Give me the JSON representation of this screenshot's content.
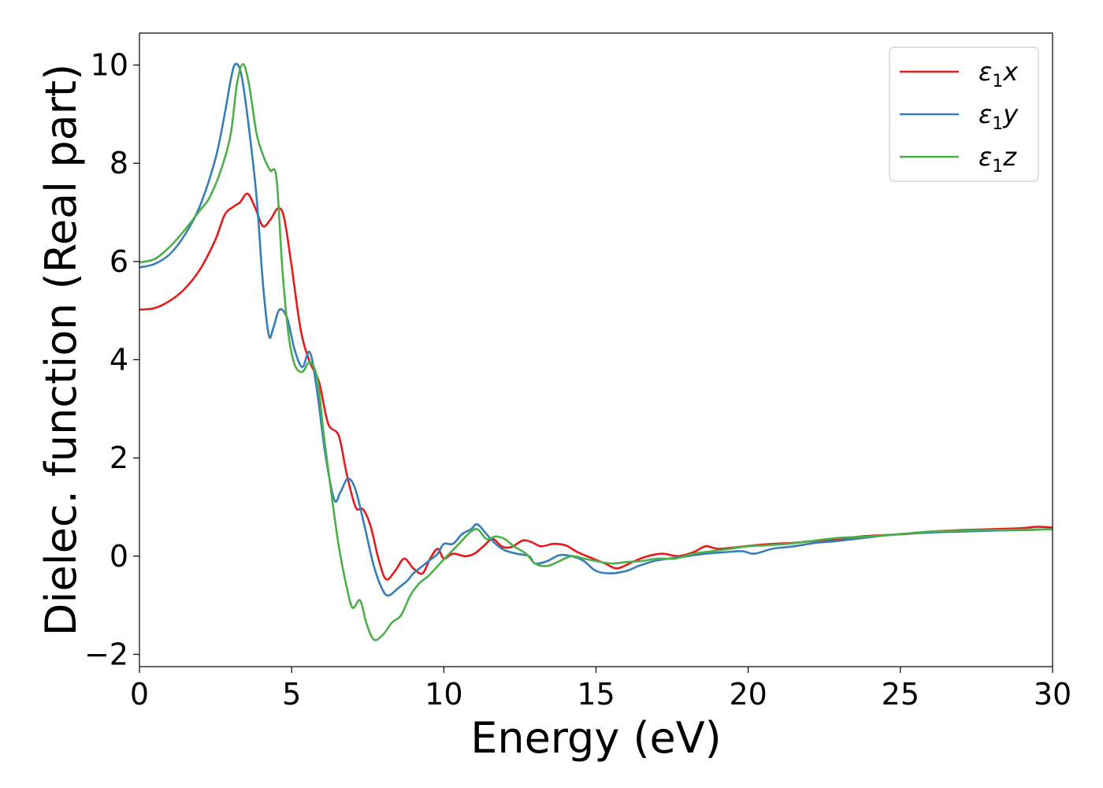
{
  "chart_data": {
    "type": "line",
    "title": "",
    "xlabel": "Energy (eV)",
    "ylabel": "Dielec. function (Real part)",
    "xlim": [
      0,
      30
    ],
    "ylim": [
      -2.25,
      10.65
    ],
    "xticks": [
      0,
      5,
      10,
      15,
      20,
      25,
      30
    ],
    "xtick_labels": [
      "0",
      "5",
      "10",
      "15",
      "20",
      "25",
      "30"
    ],
    "yticks": [
      -2,
      0,
      2,
      4,
      6,
      8,
      10
    ],
    "ytick_labels": [
      "−2",
      "0",
      "2",
      "4",
      "6",
      "8",
      "10"
    ],
    "grid": false,
    "legend": {
      "position": "top-right"
    },
    "series": [
      {
        "name": "ε1x",
        "label_base": "ε",
        "label_sub": "1",
        "label_var": "x",
        "color": "#e41a1c",
        "points": [
          [
            0,
            5.02
          ],
          [
            0.5,
            5.05
          ],
          [
            1,
            5.2
          ],
          [
            1.5,
            5.45
          ],
          [
            2,
            5.85
          ],
          [
            2.5,
            6.45
          ],
          [
            2.8,
            6.95
          ],
          [
            3.1,
            7.12
          ],
          [
            3.3,
            7.2
          ],
          [
            3.55,
            7.38
          ],
          [
            3.8,
            7.1
          ],
          [
            4.05,
            6.72
          ],
          [
            4.3,
            6.85
          ],
          [
            4.55,
            7.08
          ],
          [
            4.75,
            6.9
          ],
          [
            5.0,
            5.9
          ],
          [
            5.3,
            4.6
          ],
          [
            5.6,
            3.95
          ],
          [
            5.9,
            3.55
          ],
          [
            6.2,
            2.7
          ],
          [
            6.55,
            2.45
          ],
          [
            6.8,
            1.7
          ],
          [
            7.1,
            1.0
          ],
          [
            7.35,
            0.95
          ],
          [
            7.6,
            0.6
          ],
          [
            7.85,
            -0.05
          ],
          [
            8.1,
            -0.47
          ],
          [
            8.4,
            -0.3
          ],
          [
            8.7,
            -0.05
          ],
          [
            9.0,
            -0.25
          ],
          [
            9.3,
            -0.35
          ],
          [
            9.55,
            -0.05
          ],
          [
            9.8,
            0.15
          ],
          [
            10.0,
            -0.05
          ],
          [
            10.3,
            0.05
          ],
          [
            10.7,
            0.0
          ],
          [
            11.0,
            0.05
          ],
          [
            11.3,
            0.2
          ],
          [
            11.6,
            0.35
          ],
          [
            11.9,
            0.2
          ],
          [
            12.2,
            0.18
          ],
          [
            12.6,
            0.32
          ],
          [
            12.9,
            0.28
          ],
          [
            13.2,
            0.2
          ],
          [
            13.6,
            0.25
          ],
          [
            14.0,
            0.22
          ],
          [
            14.4,
            0.08
          ],
          [
            14.9,
            -0.05
          ],
          [
            15.3,
            -0.15
          ],
          [
            15.7,
            -0.25
          ],
          [
            16.2,
            -0.12
          ],
          [
            16.7,
            0.0
          ],
          [
            17.2,
            0.05
          ],
          [
            17.7,
            0.0
          ],
          [
            18.2,
            0.08
          ],
          [
            18.6,
            0.2
          ],
          [
            19.0,
            0.15
          ],
          [
            19.6,
            0.18
          ],
          [
            20.2,
            0.22
          ],
          [
            20.8,
            0.25
          ],
          [
            21.5,
            0.27
          ],
          [
            22.0,
            0.3
          ],
          [
            22.5,
            0.32
          ],
          [
            23.0,
            0.35
          ],
          [
            23.7,
            0.4
          ],
          [
            24.5,
            0.43
          ],
          [
            25.2,
            0.45
          ],
          [
            26.0,
            0.5
          ],
          [
            27.0,
            0.53
          ],
          [
            28.0,
            0.55
          ],
          [
            29.0,
            0.57
          ],
          [
            29.5,
            0.6
          ],
          [
            30,
            0.58
          ]
        ]
      },
      {
        "name": "ε1y",
        "label_base": "ε",
        "label_sub": "1",
        "label_var": "y",
        "color": "#377eb8",
        "points": [
          [
            0,
            5.88
          ],
          [
            0.5,
            5.95
          ],
          [
            1,
            6.15
          ],
          [
            1.5,
            6.55
          ],
          [
            2,
            7.15
          ],
          [
            2.5,
            8.1
          ],
          [
            2.8,
            9.0
          ],
          [
            3.0,
            9.7
          ],
          [
            3.15,
            10.02
          ],
          [
            3.35,
            9.8
          ],
          [
            3.6,
            8.7
          ],
          [
            3.85,
            7.3
          ],
          [
            4.05,
            5.6
          ],
          [
            4.25,
            4.5
          ],
          [
            4.4,
            4.65
          ],
          [
            4.6,
            5.02
          ],
          [
            4.85,
            4.85
          ],
          [
            5.1,
            4.2
          ],
          [
            5.35,
            3.85
          ],
          [
            5.6,
            4.15
          ],
          [
            5.85,
            3.3
          ],
          [
            6.1,
            2.1
          ],
          [
            6.4,
            1.15
          ],
          [
            6.6,
            1.3
          ],
          [
            6.85,
            1.58
          ],
          [
            7.1,
            1.35
          ],
          [
            7.4,
            0.6
          ],
          [
            7.7,
            -0.2
          ],
          [
            8.0,
            -0.7
          ],
          [
            8.2,
            -0.8
          ],
          [
            8.5,
            -0.65
          ],
          [
            8.8,
            -0.5
          ],
          [
            9.0,
            -0.35
          ],
          [
            9.2,
            -0.25
          ],
          [
            9.5,
            -0.1
          ],
          [
            9.8,
            0.05
          ],
          [
            10.0,
            0.25
          ],
          [
            10.3,
            0.25
          ],
          [
            10.6,
            0.45
          ],
          [
            10.9,
            0.55
          ],
          [
            11.1,
            0.65
          ],
          [
            11.4,
            0.45
          ],
          [
            11.7,
            0.25
          ],
          [
            12.0,
            0.12
          ],
          [
            12.4,
            0.05
          ],
          [
            12.8,
            0.0
          ],
          [
            13.0,
            -0.15
          ],
          [
            13.4,
            -0.1
          ],
          [
            13.8,
            0.02
          ],
          [
            14.2,
            0.0
          ],
          [
            14.6,
            -0.1
          ],
          [
            15.0,
            -0.3
          ],
          [
            15.5,
            -0.35
          ],
          [
            16.0,
            -0.3
          ],
          [
            16.4,
            -0.2
          ],
          [
            16.9,
            -0.1
          ],
          [
            17.4,
            -0.05
          ],
          [
            18.0,
            0.0
          ],
          [
            18.6,
            0.05
          ],
          [
            19.2,
            0.08
          ],
          [
            19.8,
            0.1
          ],
          [
            20.2,
            0.05
          ],
          [
            20.8,
            0.15
          ],
          [
            21.5,
            0.2
          ],
          [
            22.2,
            0.27
          ],
          [
            22.8,
            0.3
          ],
          [
            23.5,
            0.35
          ],
          [
            24.2,
            0.4
          ],
          [
            25.0,
            0.45
          ],
          [
            26.0,
            0.48
          ],
          [
            27.0,
            0.5
          ],
          [
            28.0,
            0.52
          ],
          [
            29.0,
            0.53
          ],
          [
            30,
            0.55
          ]
        ]
      },
      {
        "name": "ε1z",
        "label_base": "ε",
        "label_sub": "1",
        "label_var": "z",
        "color": "#4daf4a",
        "points": [
          [
            0,
            5.98
          ],
          [
            0.5,
            6.05
          ],
          [
            1,
            6.3
          ],
          [
            1.5,
            6.65
          ],
          [
            2,
            7.05
          ],
          [
            2.3,
            7.3
          ],
          [
            2.7,
            7.9
          ],
          [
            3.0,
            8.6
          ],
          [
            3.2,
            9.6
          ],
          [
            3.4,
            10.02
          ],
          [
            3.6,
            9.6
          ],
          [
            3.85,
            8.6
          ],
          [
            4.1,
            8.1
          ],
          [
            4.3,
            7.85
          ],
          [
            4.5,
            7.7
          ],
          [
            4.7,
            5.8
          ],
          [
            4.9,
            4.5
          ],
          [
            5.1,
            3.9
          ],
          [
            5.35,
            3.75
          ],
          [
            5.6,
            3.95
          ],
          [
            5.85,
            3.6
          ],
          [
            6.05,
            2.5
          ],
          [
            6.3,
            1.3
          ],
          [
            6.55,
            0.2
          ],
          [
            6.8,
            -0.6
          ],
          [
            7.0,
            -1.05
          ],
          [
            7.25,
            -0.9
          ],
          [
            7.45,
            -1.35
          ],
          [
            7.7,
            -1.7
          ],
          [
            8.0,
            -1.6
          ],
          [
            8.3,
            -1.35
          ],
          [
            8.6,
            -1.2
          ],
          [
            8.9,
            -0.8
          ],
          [
            9.2,
            -0.55
          ],
          [
            9.5,
            -0.4
          ],
          [
            9.8,
            -0.2
          ],
          [
            10.1,
            0.0
          ],
          [
            10.5,
            0.25
          ],
          [
            10.8,
            0.45
          ],
          [
            11.1,
            0.55
          ],
          [
            11.4,
            0.35
          ],
          [
            11.7,
            0.4
          ],
          [
            12.0,
            0.35
          ],
          [
            12.3,
            0.2
          ],
          [
            12.7,
            0.05
          ],
          [
            13.0,
            -0.15
          ],
          [
            13.4,
            -0.2
          ],
          [
            13.8,
            -0.1
          ],
          [
            14.2,
            0.0
          ],
          [
            14.6,
            -0.05
          ],
          [
            15.0,
            -0.1
          ],
          [
            15.5,
            -0.15
          ],
          [
            16.0,
            -0.12
          ],
          [
            16.5,
            -0.1
          ],
          [
            17.0,
            -0.05
          ],
          [
            17.6,
            -0.05
          ],
          [
            18.2,
            0.05
          ],
          [
            18.8,
            0.1
          ],
          [
            19.4,
            0.15
          ],
          [
            20.0,
            0.2
          ],
          [
            20.6,
            0.22
          ],
          [
            21.3,
            0.25
          ],
          [
            22.0,
            0.3
          ],
          [
            22.6,
            0.35
          ],
          [
            23.2,
            0.38
          ],
          [
            24.0,
            0.4
          ],
          [
            25.0,
            0.45
          ],
          [
            26.0,
            0.5
          ],
          [
            27.0,
            0.52
          ],
          [
            28.0,
            0.53
          ],
          [
            29.0,
            0.54
          ],
          [
            30,
            0.55
          ]
        ]
      }
    ]
  }
}
